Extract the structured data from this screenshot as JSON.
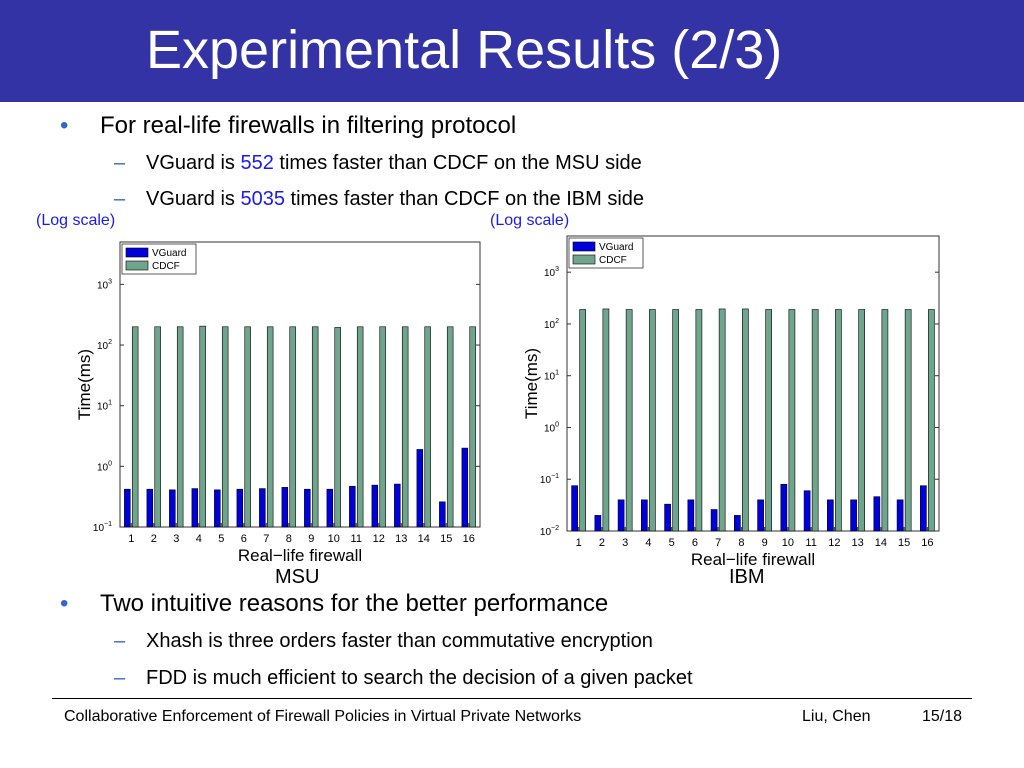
{
  "slide": {
    "title": "Experimental Results (2/3)",
    "bullet1": "For real-life firewalls in filtering protocol",
    "sub1": {
      "pre": "VGuard is ",
      "value": "552",
      "post": " times faster than CDCF on the MSU side"
    },
    "sub2": {
      "pre": "VGuard is ",
      "value": "5035",
      "post": " times faster than CDCF on the IBM side"
    },
    "bullet2": "Two intuitive reasons for the better performance",
    "sub3": "Xhash is three orders faster than commutative encryption",
    "sub4": "FDD is much efficient to search the decision of a given packet",
    "footer": {
      "left": "Collaborative Enforcement of Firewall Policies in Virtual Private Networks",
      "authors": "Liu, Chen",
      "page": "15/18"
    }
  },
  "colors": {
    "title_bg": "#3333a6",
    "vguard": "#0000dd",
    "cdcf": "#6fa58c",
    "accent_blue": "#1a1aee"
  },
  "chart_data": [
    {
      "type": "bar",
      "caption": "MSU",
      "note": "(Log scale)",
      "xlabel": "Real−life firewall",
      "ylabel": "Time(ms)",
      "yscale": "log",
      "ylim": [
        0.1,
        5000
      ],
      "yticks": [
        0.1,
        1,
        10,
        100,
        1000
      ],
      "yticklabels": [
        {
          "b": "10",
          "e": "−1"
        },
        {
          "b": "10",
          "e": "0"
        },
        {
          "b": "10",
          "e": "1"
        },
        {
          "b": "10",
          "e": "2"
        },
        {
          "b": "10",
          "e": "3"
        }
      ],
      "legend_position": "top-left",
      "categories": [
        "1",
        "2",
        "3",
        "4",
        "5",
        "6",
        "7",
        "8",
        "9",
        "10",
        "11",
        "12",
        "13",
        "14",
        "15",
        "16"
      ],
      "series": [
        {
          "name": "VGuard",
          "values": [
            0.42,
            0.42,
            0.41,
            0.43,
            0.41,
            0.42,
            0.43,
            0.45,
            0.42,
            0.42,
            0.47,
            0.49,
            0.51,
            1.9,
            0.26,
            2.0
          ]
        },
        {
          "name": "CDCF",
          "values": [
            200,
            200,
            200,
            205,
            200,
            200,
            200,
            200,
            200,
            195,
            200,
            200,
            200,
            200,
            200,
            200
          ]
        }
      ]
    },
    {
      "type": "bar",
      "caption": "IBM",
      "note": "(Log scale)",
      "xlabel": "Real−life firewall",
      "ylabel": "Time(ms)",
      "yscale": "log",
      "ylim": [
        0.01,
        5000
      ],
      "yticks": [
        0.01,
        0.1,
        1,
        10,
        100,
        1000
      ],
      "yticklabels": [
        {
          "b": "10",
          "e": "−2"
        },
        {
          "b": "10",
          "e": "−1"
        },
        {
          "b": "10",
          "e": "0"
        },
        {
          "b": "10",
          "e": "1"
        },
        {
          "b": "10",
          "e": "2"
        },
        {
          "b": "10",
          "e": "3"
        }
      ],
      "legend_position": "top-left",
      "categories": [
        "1",
        "2",
        "3",
        "4",
        "5",
        "6",
        "7",
        "8",
        "9",
        "10",
        "11",
        "12",
        "13",
        "14",
        "15",
        "16"
      ],
      "series": [
        {
          "name": "VGuard",
          "values": [
            0.075,
            0.02,
            0.04,
            0.04,
            0.033,
            0.04,
            0.026,
            0.02,
            0.04,
            0.08,
            0.06,
            0.04,
            0.04,
            0.046,
            0.04,
            0.075
          ]
        },
        {
          "name": "CDCF",
          "values": [
            190,
            195,
            190,
            190,
            190,
            190,
            195,
            195,
            190,
            190,
            190,
            190,
            190,
            190,
            190,
            190
          ]
        }
      ]
    }
  ]
}
